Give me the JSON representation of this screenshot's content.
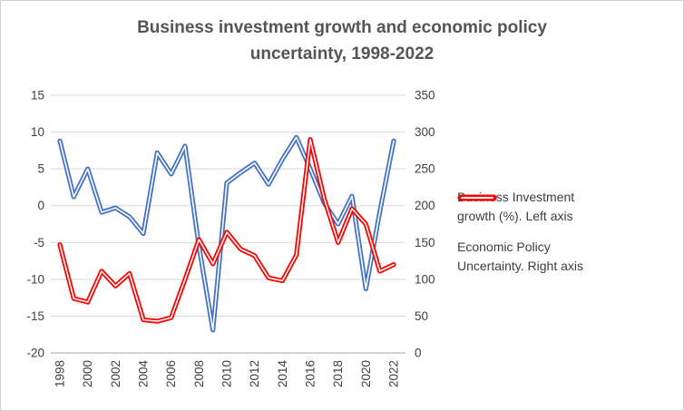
{
  "title": {
    "line1": "Business investment growth and economic policy",
    "line2": "uncertainty, 1998-2022"
  },
  "colors": {
    "blue_series": "#4472C4",
    "red_series": "#FE0000",
    "gridline": "#D9D9D9",
    "axis_line": "#A6A6A6",
    "axis_text": "#404040",
    "title_text": "#555555",
    "line_core": "#FFFFFF"
  },
  "chart_data": {
    "type": "line",
    "title": "Business investment growth and economic policy uncertainty, 1998-2022",
    "x": [
      1998,
      1999,
      2000,
      2001,
      2002,
      2003,
      2004,
      2005,
      2006,
      2007,
      2008,
      2009,
      2010,
      2011,
      2012,
      2013,
      2014,
      2015,
      2016,
      2017,
      2018,
      2019,
      2020,
      2021,
      2022
    ],
    "x_tick_labels": [
      "1998",
      "2000",
      "2002",
      "2004",
      "2006",
      "2008",
      "2010",
      "2012",
      "2014",
      "2016",
      "2018",
      "2020",
      "2022"
    ],
    "left_axis": {
      "ticks": [
        15,
        10,
        5,
        0,
        -5,
        -10,
        -15,
        -20
      ],
      "range": [
        -20,
        15
      ]
    },
    "right_axis": {
      "ticks": [
        350,
        300,
        250,
        200,
        150,
        100,
        50,
        0
      ],
      "range": [
        0,
        350
      ]
    },
    "grid": true,
    "legend_position": "right",
    "series": [
      {
        "name": "Business Investment growth (%). Left axis",
        "axis": "left",
        "color": "#4472C4",
        "values": [
          8.8,
          1.2,
          5.0,
          -0.9,
          -0.3,
          -1.5,
          -3.8,
          7.2,
          4.3,
          8.1,
          -5.5,
          -16.9,
          3.1,
          4.5,
          5.8,
          2.9,
          6.3,
          9.3,
          5.0,
          0.4,
          -2.5,
          1.3,
          -11.3,
          -0.8,
          8.8
        ]
      },
      {
        "name": "Economic Policy Uncertainty. Right axis",
        "axis": "right",
        "color": "#FE0000",
        "values": [
          147,
          74,
          69,
          111,
          91,
          108,
          45,
          43,
          48,
          100,
          154,
          121,
          164,
          141,
          132,
          102,
          98,
          133,
          290,
          210,
          150,
          196,
          175,
          111,
          120
        ]
      }
    ]
  }
}
